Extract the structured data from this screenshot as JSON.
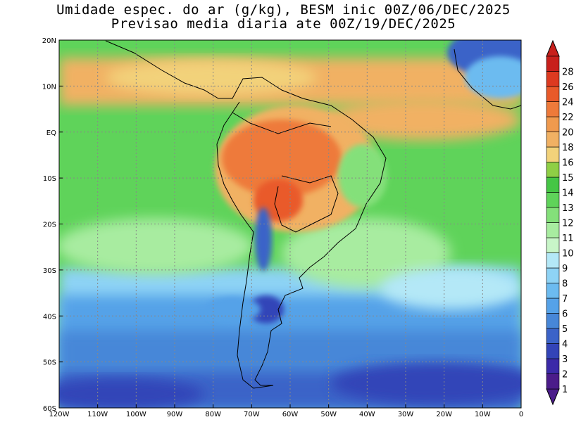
{
  "titles": {
    "line1": "Umidade espec. do ar (g/kg), BESM inic 00Z/06/DEC/2025",
    "line2": "Previsao media diaria ate 00Z/19/DEC/2025"
  },
  "map": {
    "lon_range": [
      -120,
      0
    ],
    "lat_range": [
      -60,
      20
    ],
    "lon_ticks": [
      "120W",
      "110W",
      "100W",
      "90W",
      "80W",
      "70W",
      "60W",
      "50W",
      "40W",
      "30W",
      "20W",
      "10W",
      "0"
    ],
    "lat_ticks": [
      "20N",
      "10N",
      "EQ",
      "10S",
      "20S",
      "30S",
      "40S",
      "50S",
      "60S"
    ],
    "grid": "dotted"
  },
  "colorbar": {
    "labels": [
      "1",
      "2",
      "3",
      "4",
      "5",
      "6",
      "7",
      "8",
      "9",
      "10",
      "11",
      "12",
      "13",
      "14",
      "15",
      "16",
      "18",
      "20",
      "22",
      "24",
      "26",
      "28"
    ],
    "colors": [
      "#4b1c8a",
      "#3b2aa8",
      "#3344b8",
      "#3b63c8",
      "#4787d8",
      "#55a2e8",
      "#6cbbf0",
      "#8ed3f5",
      "#b4e8f7",
      "#c8f5c8",
      "#a8eca0",
      "#84e07a",
      "#5fd35a",
      "#45c645",
      "#8fcf45",
      "#f2d27a",
      "#f1b163",
      "#f09a4e",
      "#ee7a3a",
      "#e95a2a",
      "#dd3a20",
      "#c8201c"
    ]
  }
}
